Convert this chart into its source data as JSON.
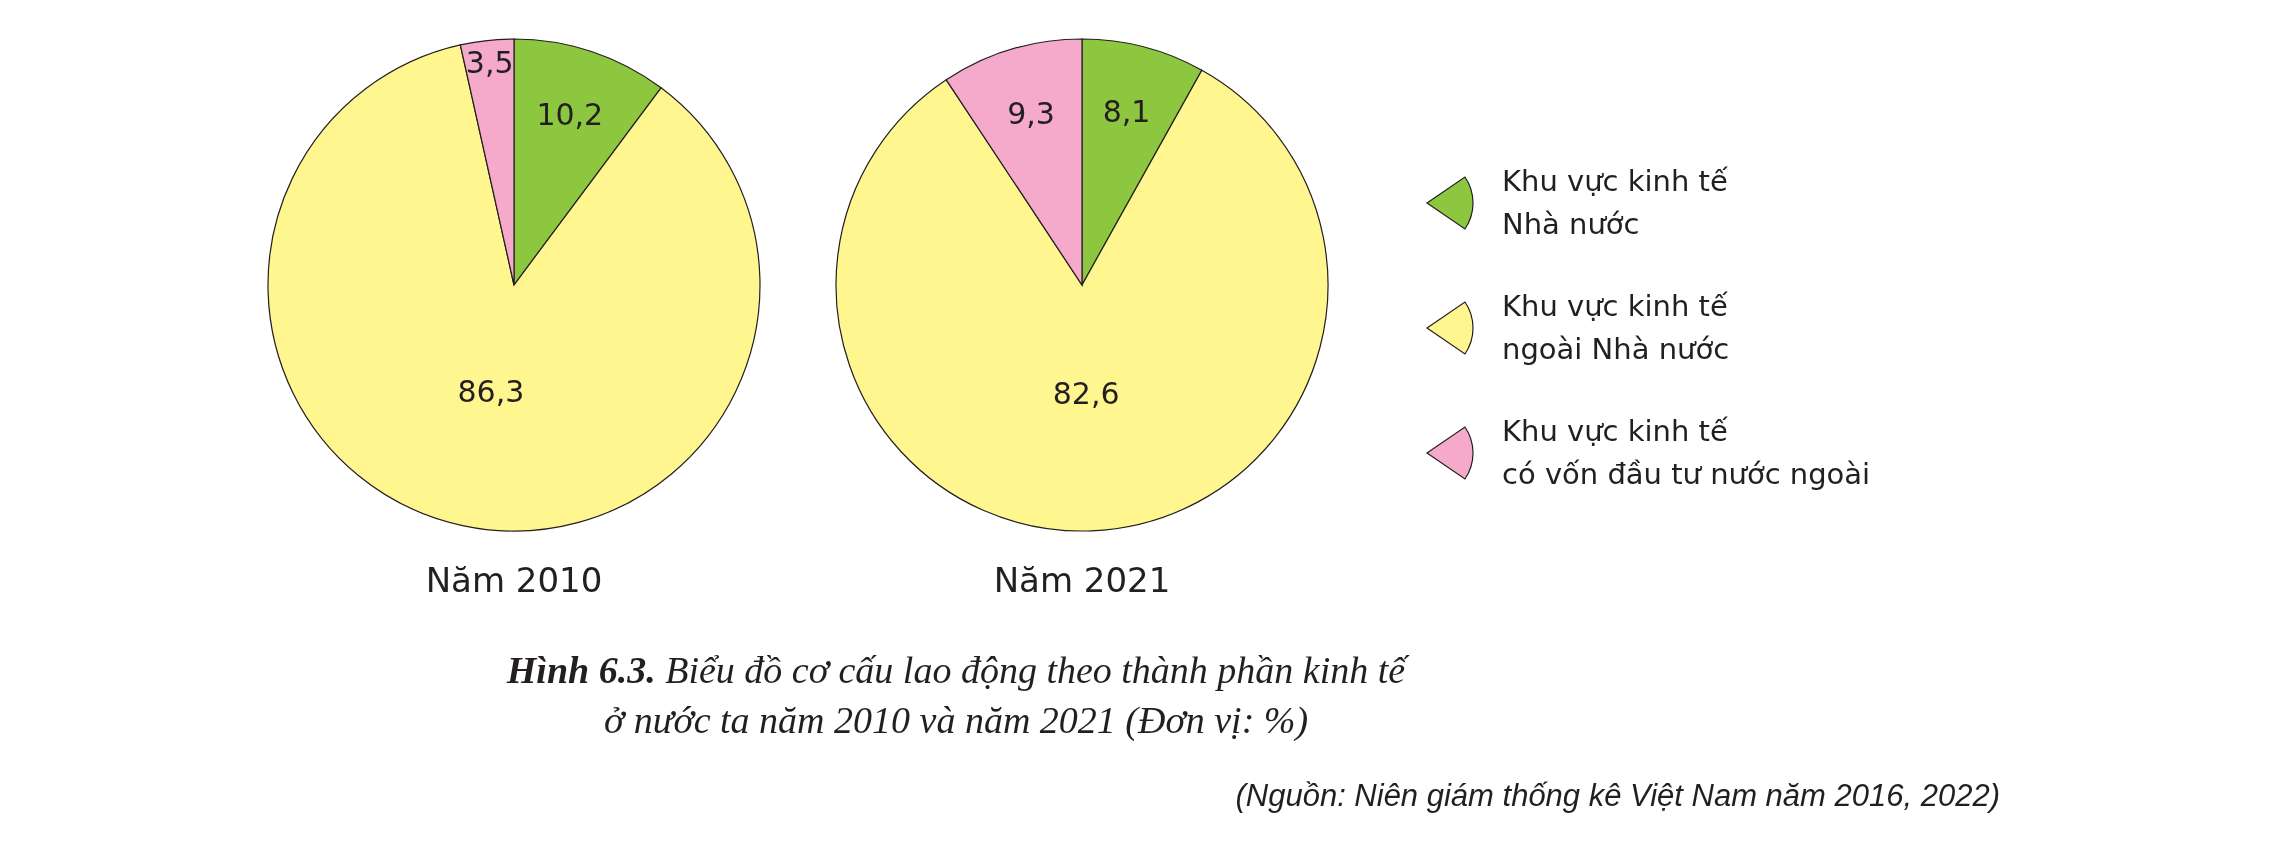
{
  "chart_data": [
    {
      "type": "pie",
      "title": "Năm 2010",
      "categories": [
        null,
        null,
        null
      ],
      "values": [
        10.2,
        86.3,
        3.5
      ],
      "colors": [
        "#8dc63f",
        "#fff68f",
        "#f5aacb"
      ],
      "value_labels": [
        "10,2",
        "86,3",
        "3,5"
      ]
    },
    {
      "type": "pie",
      "title": "Năm 2021",
      "categories": [
        "Khu vực kinh tế Nhà nước",
        "Khu vực kinh tế ngoài Nhà nước",
        "Khu vực kinh tế có vốn đầu tư nước ngoài"
      ],
      "values": [
        8.1,
        82.6,
        9.3
      ],
      "colors": [
        "#8dc63f",
        "#fff68f",
        "#f5aacb"
      ],
      "value_labels": [
        "8,1",
        "82,6",
        "9,3"
      ],
      "legend": "right",
      "annotations": [
        "Hình 6.3. Biểu đồ cơ cấu lao động theo thành phần kinh tế\nở nước ta năm 2010 và năm 2021 (Đơn vị: %)",
        "(Nguồn: Niên giám thống kê Việt Nam năm 2016, 2022)"
      ]
    }
  ]
}
